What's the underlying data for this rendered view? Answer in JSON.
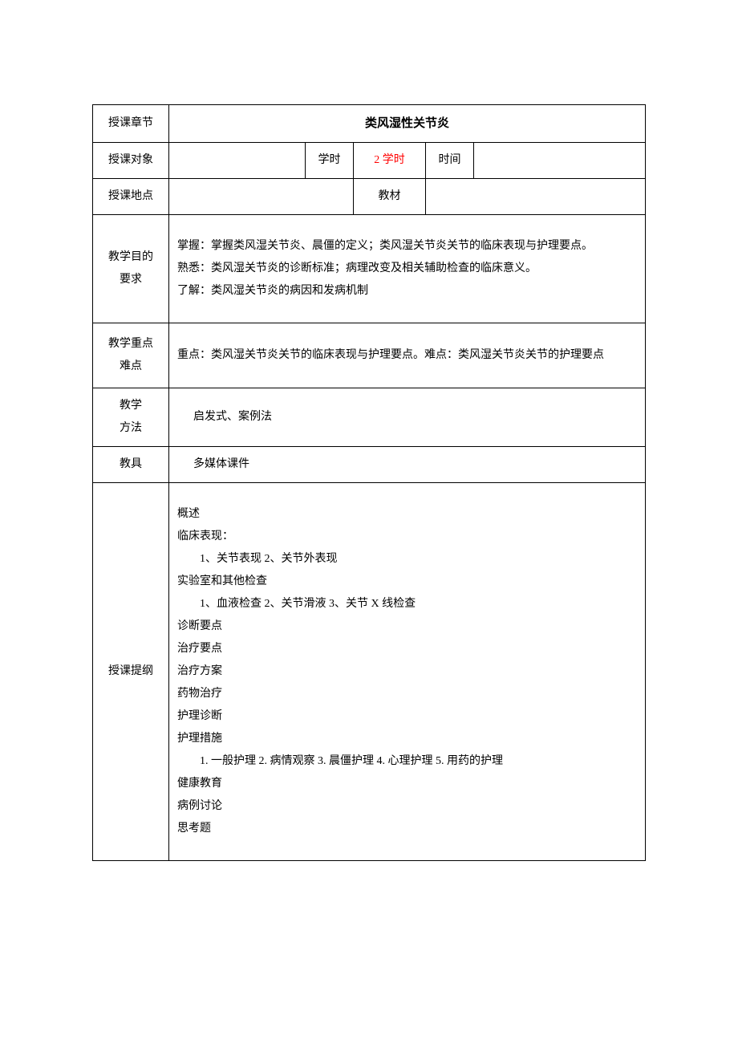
{
  "labels": {
    "chapter": "授课章节",
    "audience": "授课对象",
    "periods": "学时",
    "time": "时间",
    "location": "授课地点",
    "textbook": "教材",
    "objectives_l1": "教学目的",
    "objectives_l2": "要求",
    "keypoints_l1": "教学重点",
    "keypoints_l2": "难点",
    "methods_l1": "教学",
    "methods_l2": "方法",
    "tools": "教具",
    "outline": "授课提纲"
  },
  "values": {
    "chapter_title": "类风湿性关节炎",
    "audience": "",
    "periods": "2 学时",
    "time": "",
    "location": "",
    "textbook": "",
    "objectives": "掌握：掌握类风湿关节炎、晨僵的定义；类风湿关节炎关节的临床表现与护理要点。\n熟悉：类风湿关节炎的诊断标准；病理改变及相关辅助检查的临床意义。\n了解：类风湿关节炎的病因和发病机制",
    "keypoints": "重点：类风湿关节炎关节的临床表现与护理要点。难点：类风湿关节炎关节的护理要点",
    "methods": "启发式、案例法",
    "tools": "多媒体课件"
  },
  "outline": {
    "items": [
      {
        "text": "概述",
        "indent": false
      },
      {
        "text": "临床表现：",
        "indent": false
      },
      {
        "text": "1、关节表现 2、关节外表现",
        "indent": true
      },
      {
        "text": "实验室和其他检查",
        "indent": false
      },
      {
        "text": "1、血液检查 2、关节滑液 3、关节 X 线检查",
        "indent": true
      },
      {
        "text": "诊断要点",
        "indent": false
      },
      {
        "text": "治疗要点",
        "indent": false
      },
      {
        "text": "治疗方案",
        "indent": false
      },
      {
        "text": "药物治疗",
        "indent": false
      },
      {
        "text": "护理诊断",
        "indent": false
      },
      {
        "text": "护理措施",
        "indent": false
      },
      {
        "text": "1. 一般护理 2. 病情观察 3. 晨僵护理 4. 心理护理 5. 用药的护理",
        "indent": true
      },
      {
        "text": "健康教育",
        "indent": false
      },
      {
        "text": "病例讨论",
        "indent": false
      },
      {
        "text": "思考题",
        "indent": false
      }
    ]
  },
  "styles": {
    "text_color": "#000000",
    "accent_color": "#ff0000",
    "border_color": "#000000",
    "background_color": "#ffffff",
    "font_family": "SimSun",
    "base_fontsize": 14,
    "title_fontsize": 15
  }
}
